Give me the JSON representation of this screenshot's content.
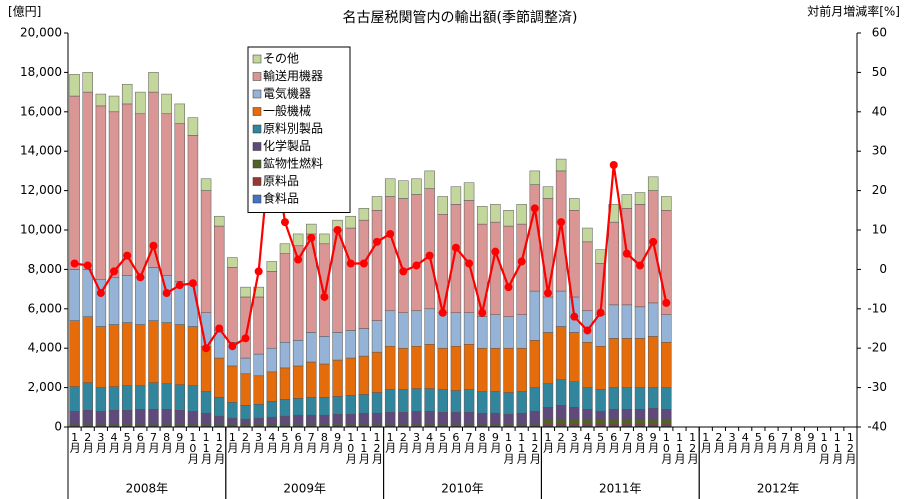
{
  "chart_data": {
    "type": "bar",
    "stacked": true,
    "title": "名古屋税関管内の輸出額(季節調整済)",
    "y_label": "[億円]",
    "y2_label": "対前月増減率[%]",
    "categories": [
      "1月",
      "2月",
      "3月",
      "4月",
      "5月",
      "6月",
      "7月",
      "8月",
      "9月",
      "10月",
      "11月",
      "12月",
      "1月",
      "2月",
      "3月",
      "4月",
      "5月",
      "6月",
      "7月",
      "8月",
      "9月",
      "10月",
      "11月",
      "12月",
      "1月",
      "2月",
      "3月",
      "4月",
      "5月",
      "6月",
      "7月",
      "8月",
      "9月",
      "10月",
      "11月",
      "12月",
      "1月",
      "2月",
      "3月",
      "4月",
      "5月",
      "6月",
      "7月",
      "8月",
      "9月",
      "10月",
      "11月",
      "12月",
      "1月",
      "2月",
      "3月",
      "4月",
      "5月",
      "6月",
      "7月",
      "8月",
      "9月",
      "10月",
      "11月",
      "12月"
    ],
    "years": [
      "2008年",
      "2009年",
      "2010年",
      "2011年",
      "2012年"
    ],
    "ylim": [
      0,
      20000
    ],
    "yticks": [
      0,
      {
        "value": 2000,
        "label": "2,000"
      },
      {
        "value": 4000,
        "label": "4,000"
      },
      {
        "value": 6000,
        "label": "6,000"
      },
      {
        "value": 8000,
        "label": "8,000"
      },
      {
        "value": 10000,
        "label": "10,000"
      },
      {
        "value": 12000,
        "label": "12,000"
      },
      {
        "value": 14000,
        "label": "14,000"
      },
      {
        "value": 16000,
        "label": "16,000"
      },
      {
        "value": 18000,
        "label": "18,000"
      },
      {
        "value": 20000,
        "label": "20,000"
      }
    ],
    "y2lim": [
      -40,
      60
    ],
    "y2ticks": [
      -40,
      -30,
      -20,
      -10,
      0,
      10,
      20,
      30,
      40,
      50,
      60
    ],
    "grid": false,
    "legend": "top-left",
    "series": [
      {
        "name": "食料品",
        "color": "#4472c4",
        "values": [
          50,
          50,
          50,
          50,
          50,
          50,
          50,
          50,
          50,
          50,
          50,
          50,
          50,
          50,
          50,
          50,
          50,
          50,
          50,
          50,
          50,
          50,
          50,
          50,
          50,
          50,
          50,
          50,
          50,
          50,
          50,
          50,
          50,
          50,
          50,
          50,
          50,
          50,
          50,
          50,
          50,
          50,
          50,
          50,
          50,
          50,
          null,
          null,
          null,
          null,
          null,
          null,
          null,
          null,
          null,
          null,
          null,
          null,
          null,
          null
        ]
      },
      {
        "name": "原料品",
        "color": "#953735",
        "values": [
          50,
          50,
          50,
          50,
          50,
          50,
          50,
          50,
          50,
          50,
          50,
          50,
          50,
          50,
          50,
          50,
          50,
          50,
          50,
          50,
          50,
          50,
          50,
          50,
          50,
          50,
          50,
          50,
          50,
          50,
          50,
          50,
          50,
          50,
          50,
          50,
          100,
          100,
          100,
          100,
          100,
          100,
          100,
          100,
          100,
          100,
          null,
          null,
          null,
          null,
          null,
          null,
          null,
          null,
          null,
          null,
          null,
          null,
          null,
          null
        ]
      },
      {
        "name": "鉱物性燃料",
        "color": "#4f6228",
        "values": [
          50,
          50,
          50,
          50,
          50,
          50,
          50,
          50,
          50,
          50,
          50,
          50,
          50,
          50,
          50,
          50,
          50,
          50,
          50,
          50,
          50,
          50,
          50,
          50,
          50,
          50,
          50,
          50,
          50,
          50,
          50,
          50,
          50,
          50,
          50,
          50,
          250,
          250,
          250,
          250,
          250,
          250,
          250,
          250,
          250,
          250,
          null,
          null,
          null,
          null,
          null,
          null,
          null,
          null,
          null,
          null,
          null,
          null,
          null,
          null
        ]
      },
      {
        "name": "化学製品",
        "color": "#604a7b",
        "values": [
          650,
          700,
          650,
          700,
          700,
          750,
          750,
          750,
          700,
          650,
          550,
          400,
          300,
          250,
          300,
          350,
          400,
          450,
          450,
          450,
          500,
          500,
          550,
          550,
          600,
          600,
          650,
          650,
          600,
          600,
          600,
          550,
          550,
          500,
          550,
          650,
          600,
          700,
          600,
          500,
          400,
          500,
          500,
          500,
          550,
          500,
          null,
          null,
          null,
          null,
          null,
          null,
          null,
          null,
          null,
          null,
          null,
          null,
          null,
          null
        ]
      },
      {
        "name": "原料別製品",
        "color": "#31859c",
        "values": [
          1250,
          1400,
          1200,
          1200,
          1250,
          1200,
          1350,
          1300,
          1300,
          1300,
          1100,
          950,
          800,
          700,
          700,
          800,
          850,
          850,
          900,
          900,
          900,
          950,
          950,
          1050,
          1150,
          1150,
          1150,
          1150,
          1150,
          1100,
          1150,
          1100,
          1100,
          1100,
          1100,
          1200,
          1200,
          1300,
          1300,
          1100,
          1100,
          1100,
          1100,
          1100,
          1050,
          1100,
          null,
          null,
          null,
          null,
          null,
          null,
          null,
          null,
          null,
          null,
          null,
          null,
          null,
          null
        ]
      },
      {
        "name": "一般機械",
        "color": "#e46c0a",
        "values": [
          3350,
          3350,
          3100,
          3150,
          3200,
          3100,
          3150,
          3100,
          3050,
          3000,
          2300,
          2000,
          1850,
          1600,
          1450,
          1500,
          1600,
          1650,
          1800,
          1700,
          1850,
          1900,
          1950,
          2050,
          2200,
          2100,
          2150,
          2250,
          2100,
          2250,
          2300,
          2200,
          2200,
          2250,
          2200,
          2400,
          2600,
          2700,
          2500,
          2300,
          2200,
          2500,
          2500,
          2500,
          2600,
          2300,
          null,
          null,
          null,
          null,
          null,
          null,
          null,
          null,
          null,
          null,
          null,
          null,
          null,
          null
        ]
      },
      {
        "name": "電気機器",
        "color": "#95b3d7",
        "values": [
          2600,
          2400,
          2400,
          2400,
          2400,
          2400,
          2700,
          2400,
          2200,
          2100,
          1700,
          1400,
          1200,
          800,
          1100,
          1200,
          1300,
          1300,
          1500,
          1400,
          1400,
          1400,
          1400,
          1600,
          1800,
          1800,
          1800,
          1800,
          1800,
          1700,
          1600,
          1600,
          1700,
          1600,
          1700,
          2500,
          1800,
          1800,
          1800,
          1600,
          1600,
          1700,
          1700,
          1600,
          1700,
          1400,
          null,
          null,
          null,
          null,
          null,
          null,
          null,
          null,
          null,
          null,
          null,
          null,
          null,
          null
        ]
      },
      {
        "name": "輸送用機器",
        "color": "#d99694",
        "values": [
          8800,
          9000,
          8800,
          8400,
          8700,
          8300,
          8900,
          8200,
          8000,
          7600,
          6200,
          5300,
          3800,
          3100,
          2900,
          3900,
          4500,
          4800,
          5000,
          4700,
          5200,
          5200,
          5500,
          5600,
          5800,
          5800,
          5900,
          6100,
          5000,
          5500,
          5700,
          4700,
          4700,
          4600,
          4600,
          5400,
          5000,
          6100,
          4400,
          3500,
          2600,
          4200,
          4900,
          5200,
          5700,
          5300,
          null,
          null,
          null,
          null,
          null,
          null,
          null,
          null,
          null,
          null,
          null,
          null,
          null,
          null
        ]
      },
      {
        "name": "その他",
        "color": "#c3d69b",
        "values": [
          1100,
          1000,
          600,
          800,
          1000,
          1100,
          1000,
          1000,
          1000,
          900,
          600,
          500,
          500,
          500,
          500,
          500,
          500,
          600,
          500,
          500,
          500,
          600,
          600,
          700,
          900,
          900,
          800,
          900,
          900,
          900,
          900,
          900,
          900,
          800,
          1000,
          700,
          600,
          600,
          600,
          700,
          700,
          900,
          700,
          600,
          700,
          700,
          null,
          null,
          null,
          null,
          null,
          null,
          null,
          null,
          null,
          null,
          null,
          null,
          null,
          null
        ]
      },
      {
        "type": "line",
        "axis": "y2",
        "color": "#ff0000",
        "values": [
          1.5,
          1,
          -6,
          -0.5,
          3.5,
          -2,
          6,
          -6,
          -4,
          -3.5,
          -20,
          -15,
          -19.5,
          -17.5,
          -0.5,
          35,
          12,
          2.5,
          8,
          -7,
          10,
          1.5,
          1.5,
          7,
          9,
          -0.5,
          1,
          3.5,
          -11,
          5.5,
          1.5,
          -11,
          4.5,
          -4.5,
          2,
          15.5,
          -6,
          12,
          -12,
          -15.5,
          -11,
          26.5,
          4,
          1,
          7,
          -8.5,
          null,
          null,
          null,
          null,
          null,
          null,
          null,
          null,
          null,
          null,
          null,
          null,
          null,
          null
        ]
      }
    ]
  }
}
